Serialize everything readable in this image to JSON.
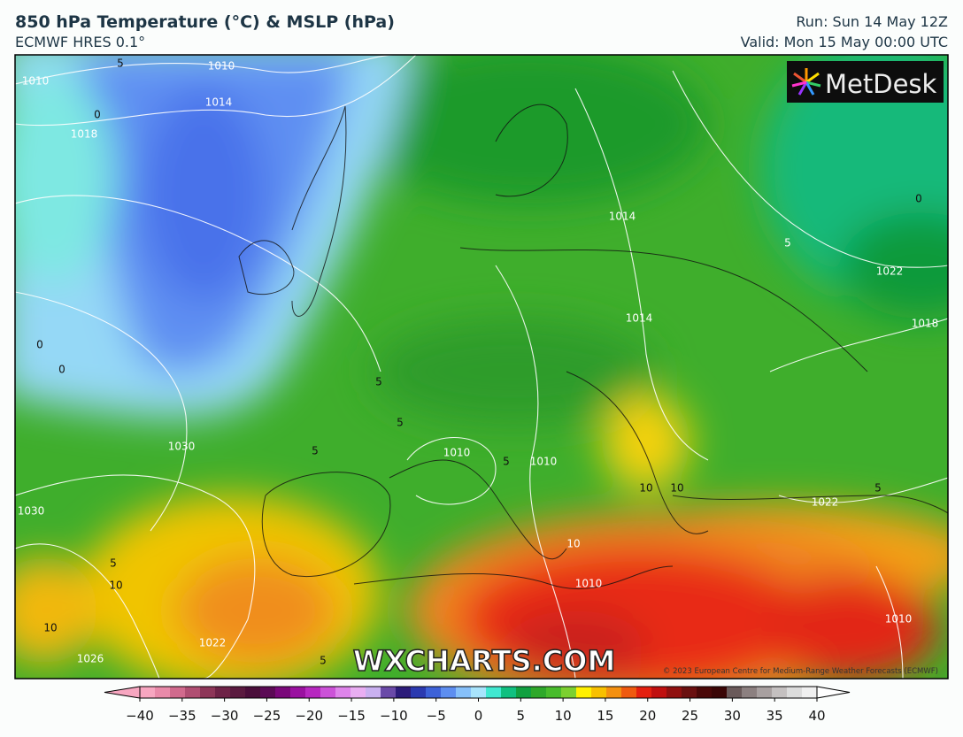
{
  "header": {
    "title": "850 hPa Temperature (°C) & MSLP (hPa)",
    "subtitle": "ECMWF HRES 0.1°",
    "run": "Run: Sun 14 May 12Z",
    "valid": "Valid: Mon 15 May 00:00 UTC"
  },
  "logo": "MetDesk",
  "watermark": "WXCHARTS.COM",
  "copyright": "© 2023 European Centre for Medium-Range Weather Forecasts (ECMWF)",
  "contour_labels": [
    "1010",
    "1010",
    "1014",
    "0",
    "1018",
    "5",
    "1014",
    "5",
    "1022",
    "0",
    "1014",
    "1018",
    "0",
    "0",
    "5",
    "5",
    "1030",
    "1010",
    "5",
    "5",
    "1010",
    "10",
    "10",
    "5",
    "1022",
    "1030",
    "5",
    "10",
    "10",
    "1010",
    "10",
    "1022",
    "1026",
    "1010",
    "5"
  ],
  "colorbar": {
    "ticks": [
      {
        "value": -40,
        "label": "−40"
      },
      {
        "value": -35,
        "label": "−35"
      },
      {
        "value": -30,
        "label": "−30"
      },
      {
        "value": -25,
        "label": "−25"
      },
      {
        "value": -20,
        "label": "−20"
      },
      {
        "value": -15,
        "label": "−15"
      },
      {
        "value": -10,
        "label": "−10"
      },
      {
        "value": -5,
        "label": "−5"
      },
      0,
      5,
      10,
      15,
      20,
      25,
      30,
      35,
      40
    ]
  }
}
